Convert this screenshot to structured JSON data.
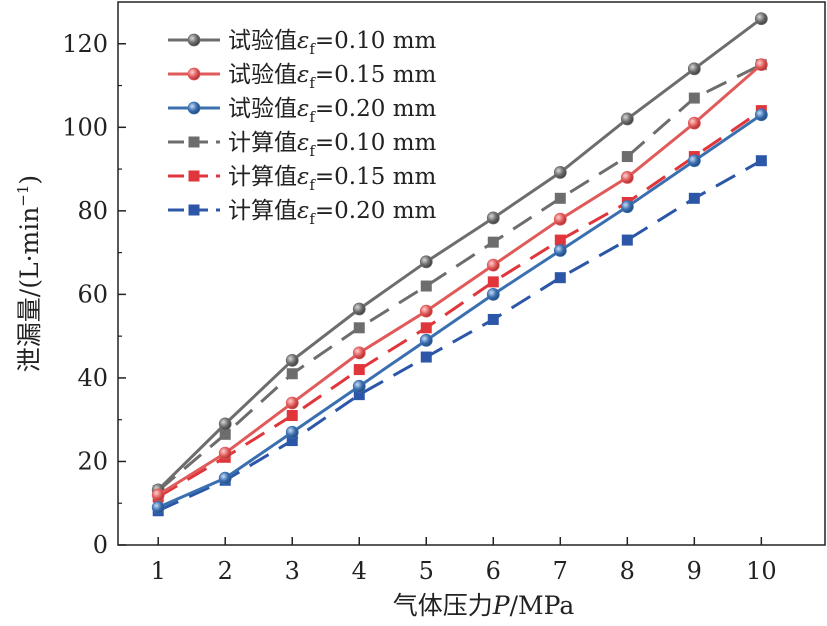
{
  "chart_data": {
    "type": "line",
    "title": "",
    "xlabel_prefix": "气体压力",
    "xlabel_var": "P",
    "xlabel_unit": "/MPa",
    "ylabel_main": "泄漏量/(L·min",
    "ylabel_sup": "−1",
    "ylabel_close": ")",
    "x": [
      1,
      2,
      3,
      4,
      5,
      6,
      7,
      8,
      9,
      10
    ],
    "xlim": [
      0.4,
      10.95
    ],
    "ylim": [
      0,
      130
    ],
    "yticks": [
      0,
      20,
      40,
      60,
      80,
      100,
      120
    ],
    "xticks": [
      1,
      2,
      3,
      4,
      5,
      6,
      7,
      8,
      9,
      10
    ],
    "grid": false,
    "legend_position": "top-left",
    "series": [
      {
        "name_prefix": "试验值",
        "eps": "ε",
        "sub": "f",
        "name_suffix": "=0.10 mm",
        "kind": "test",
        "color": "#6d6d6d",
        "dash": "solid",
        "marker": "circle",
        "values": [
          13.2,
          29,
          44.2,
          56.5,
          67.8,
          78.3,
          89.2,
          102,
          114,
          126
        ]
      },
      {
        "name_prefix": "试验值",
        "eps": "ε",
        "sub": "f",
        "name_suffix": "=0.15 mm",
        "kind": "test",
        "color": "#e05a5a",
        "dash": "solid",
        "marker": "circle",
        "values": [
          12,
          22,
          34,
          46,
          56,
          67,
          78,
          88,
          101,
          115
        ]
      },
      {
        "name_prefix": "试验值",
        "eps": "ε",
        "sub": "f",
        "name_suffix": "=0.20 mm",
        "kind": "test",
        "color": "#3a6fb0",
        "dash": "solid",
        "marker": "circle",
        "values": [
          9,
          16,
          27,
          38,
          49,
          60,
          70.5,
          81,
          92,
          103
        ]
      },
      {
        "name_prefix": "计算值",
        "eps": "ε",
        "sub": "f",
        "name_suffix": "=0.10 mm",
        "kind": "calc",
        "color": "#6d6d6d",
        "dash": "dashed",
        "marker": "square",
        "values": [
          13,
          26.5,
          41,
          52,
          62,
          72.5,
          83,
          93,
          107,
          115
        ]
      },
      {
        "name_prefix": "计算值",
        "eps": "ε",
        "sub": "f",
        "name_suffix": "=0.15 mm",
        "kind": "calc",
        "color": "#e0363b",
        "dash": "dashed",
        "marker": "square",
        "values": [
          11.5,
          21,
          31,
          42,
          52,
          63,
          73,
          82,
          93,
          104
        ]
      },
      {
        "name_prefix": "计算值",
        "eps": "ε",
        "sub": "f",
        "name_suffix": "=0.20 mm",
        "kind": "calc",
        "color": "#2c56a8",
        "dash": "dashed",
        "marker": "square",
        "values": [
          8.2,
          15.5,
          25,
          36,
          45,
          54,
          64,
          73,
          83,
          92
        ]
      }
    ]
  }
}
